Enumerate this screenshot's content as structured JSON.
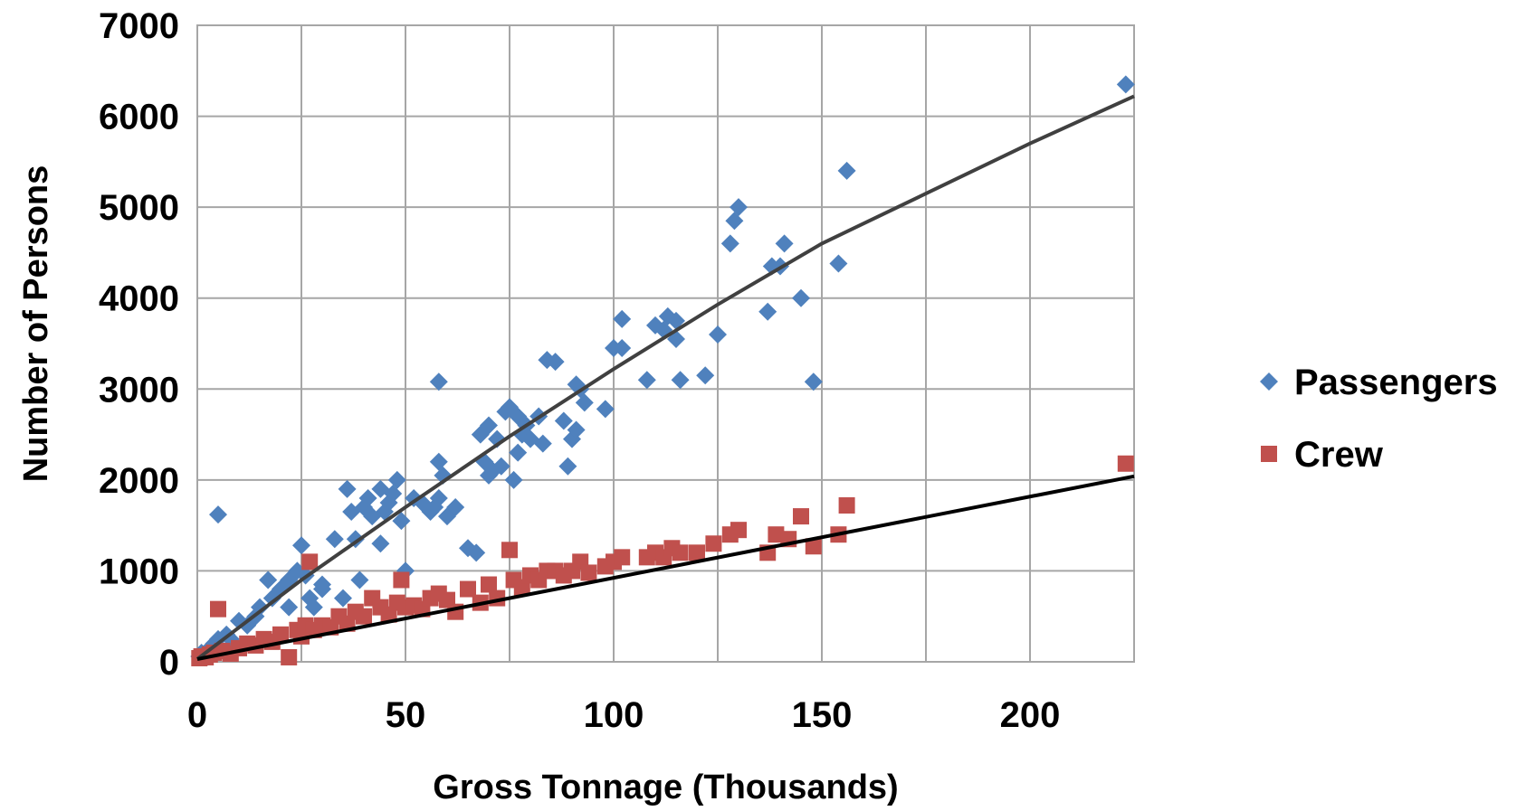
{
  "chart_data": {
    "type": "scatter",
    "title": "",
    "xlabel": "Gross Tonnage (Thousands)",
    "ylabel": "Number of Persons",
    "xlim": [
      0,
      225
    ],
    "ylim": [
      0,
      7000
    ],
    "xticks": [
      0,
      50,
      100,
      150,
      200
    ],
    "yticks": [
      0,
      1000,
      2000,
      3000,
      4000,
      5000,
      6000,
      7000
    ],
    "xtick_labels": [
      "0",
      "50",
      "100",
      "150",
      "200"
    ],
    "ytick_labels": [
      "0",
      "1000",
      "2000",
      "3000",
      "4000",
      "5000",
      "6000",
      "7000"
    ],
    "grid": true,
    "legend_position": "right",
    "series": [
      {
        "name": "Passengers",
        "color": "#4f81bd",
        "marker": "diamond",
        "trendline_color": "#404040",
        "trendline": [
          [
            0,
            30
          ],
          [
            25,
            900
          ],
          [
            50,
            1700
          ],
          [
            75,
            2480
          ],
          [
            100,
            3220
          ],
          [
            125,
            3930
          ],
          [
            150,
            4600
          ],
          [
            175,
            5150
          ],
          [
            200,
            5700
          ],
          [
            225,
            6220
          ]
        ],
        "points": [
          [
            0.5,
            60
          ],
          [
            1,
            100
          ],
          [
            2,
            80
          ],
          [
            3,
            150
          ],
          [
            4,
            200
          ],
          [
            5,
            250
          ],
          [
            5,
            1620
          ],
          [
            7,
            300
          ],
          [
            8,
            250
          ],
          [
            10,
            450
          ],
          [
            12,
            400
          ],
          [
            14,
            500
          ],
          [
            15,
            600
          ],
          [
            17,
            900
          ],
          [
            18,
            700
          ],
          [
            20,
            800
          ],
          [
            22,
            900
          ],
          [
            22,
            600
          ],
          [
            24,
            1000
          ],
          [
            25,
            1280
          ],
          [
            26,
            950
          ],
          [
            27,
            700
          ],
          [
            28,
            600
          ],
          [
            30,
            850
          ],
          [
            30,
            800
          ],
          [
            33,
            1350
          ],
          [
            35,
            700
          ],
          [
            36,
            1900
          ],
          [
            37,
            1650
          ],
          [
            38,
            1350
          ],
          [
            39,
            900
          ],
          [
            40,
            1700
          ],
          [
            41,
            1800
          ],
          [
            42,
            1600
          ],
          [
            44,
            1300
          ],
          [
            44,
            1900
          ],
          [
            45,
            1650
          ],
          [
            46,
            1750
          ],
          [
            47,
            1850
          ],
          [
            48,
            2000
          ],
          [
            49,
            1550
          ],
          [
            50,
            1000
          ],
          [
            52,
            1800
          ],
          [
            54,
            1750
          ],
          [
            56,
            1650
          ],
          [
            57,
            1700
          ],
          [
            58,
            1800
          ],
          [
            58,
            2200
          ],
          [
            58,
            3080
          ],
          [
            59,
            2050
          ],
          [
            60,
            1600
          ],
          [
            62,
            1700
          ],
          [
            65,
            1250
          ],
          [
            67,
            1200
          ],
          [
            68,
            2500
          ],
          [
            69,
            2200
          ],
          [
            70,
            2050
          ],
          [
            70,
            2600
          ],
          [
            71,
            2100
          ],
          [
            72,
            2450
          ],
          [
            73,
            2150
          ],
          [
            74,
            2750
          ],
          [
            75,
            2800
          ],
          [
            76,
            2000
          ],
          [
            77,
            2700
          ],
          [
            77,
            2300
          ],
          [
            78,
            2500
          ],
          [
            79,
            2600
          ],
          [
            80,
            2450
          ],
          [
            82,
            2700
          ],
          [
            83,
            2400
          ],
          [
            84,
            3320
          ],
          [
            86,
            3300
          ],
          [
            88,
            2650
          ],
          [
            89,
            2150
          ],
          [
            90,
            2450
          ],
          [
            91,
            2550
          ],
          [
            91,
            3050
          ],
          [
            92,
            3000
          ],
          [
            93,
            2850
          ],
          [
            98,
            2780
          ],
          [
            100,
            3450
          ],
          [
            102,
            3450
          ],
          [
            102,
            3770
          ],
          [
            108,
            3100
          ],
          [
            110,
            3700
          ],
          [
            112,
            3650
          ],
          [
            113,
            3800
          ],
          [
            115,
            3750
          ],
          [
            115,
            3550
          ],
          [
            116,
            3100
          ],
          [
            122,
            3150
          ],
          [
            125,
            3600
          ],
          [
            128,
            4600
          ],
          [
            129,
            4850
          ],
          [
            130,
            5000
          ],
          [
            137,
            3850
          ],
          [
            138,
            4350
          ],
          [
            140,
            4350
          ],
          [
            141,
            4600
          ],
          [
            145,
            4000
          ],
          [
            148,
            3080
          ],
          [
            154,
            4380
          ],
          [
            156,
            5400
          ],
          [
            223,
            6350
          ]
        ]
      },
      {
        "name": "Crew",
        "color": "#c0504d",
        "marker": "square",
        "trendline_color": "#000000",
        "trendline": [
          [
            0,
            30
          ],
          [
            225,
            2040
          ]
        ],
        "points": [
          [
            0.5,
            40
          ],
          [
            1,
            60
          ],
          [
            2,
            50
          ],
          [
            3,
            80
          ],
          [
            4,
            100
          ],
          [
            5,
            580
          ],
          [
            6,
            120
          ],
          [
            8,
            90
          ],
          [
            10,
            150
          ],
          [
            12,
            200
          ],
          [
            14,
            180
          ],
          [
            16,
            250
          ],
          [
            18,
            220
          ],
          [
            20,
            300
          ],
          [
            22,
            50
          ],
          [
            24,
            350
          ],
          [
            25,
            280
          ],
          [
            26,
            400
          ],
          [
            27,
            1100
          ],
          [
            28,
            350
          ],
          [
            30,
            400
          ],
          [
            32,
            380
          ],
          [
            34,
            500
          ],
          [
            36,
            420
          ],
          [
            38,
            550
          ],
          [
            40,
            500
          ],
          [
            42,
            700
          ],
          [
            44,
            600
          ],
          [
            46,
            520
          ],
          [
            48,
            650
          ],
          [
            49,
            900
          ],
          [
            50,
            600
          ],
          [
            52,
            620
          ],
          [
            54,
            580
          ],
          [
            56,
            700
          ],
          [
            58,
            750
          ],
          [
            60,
            680
          ],
          [
            62,
            550
          ],
          [
            65,
            800
          ],
          [
            68,
            650
          ],
          [
            70,
            850
          ],
          [
            72,
            700
          ],
          [
            75,
            1230
          ],
          [
            76,
            900
          ],
          [
            78,
            820
          ],
          [
            80,
            950
          ],
          [
            82,
            900
          ],
          [
            84,
            1000
          ],
          [
            86,
            1000
          ],
          [
            88,
            950
          ],
          [
            90,
            1000
          ],
          [
            92,
            1100
          ],
          [
            94,
            980
          ],
          [
            98,
            1050
          ],
          [
            100,
            1100
          ],
          [
            102,
            1150
          ],
          [
            108,
            1150
          ],
          [
            110,
            1200
          ],
          [
            112,
            1150
          ],
          [
            114,
            1250
          ],
          [
            116,
            1200
          ],
          [
            120,
            1200
          ],
          [
            124,
            1300
          ],
          [
            128,
            1400
          ],
          [
            130,
            1450
          ],
          [
            137,
            1200
          ],
          [
            139,
            1400
          ],
          [
            142,
            1350
          ],
          [
            145,
            1600
          ],
          [
            148,
            1270
          ],
          [
            154,
            1400
          ],
          [
            156,
            1720
          ],
          [
            223,
            2180
          ]
        ]
      }
    ]
  }
}
